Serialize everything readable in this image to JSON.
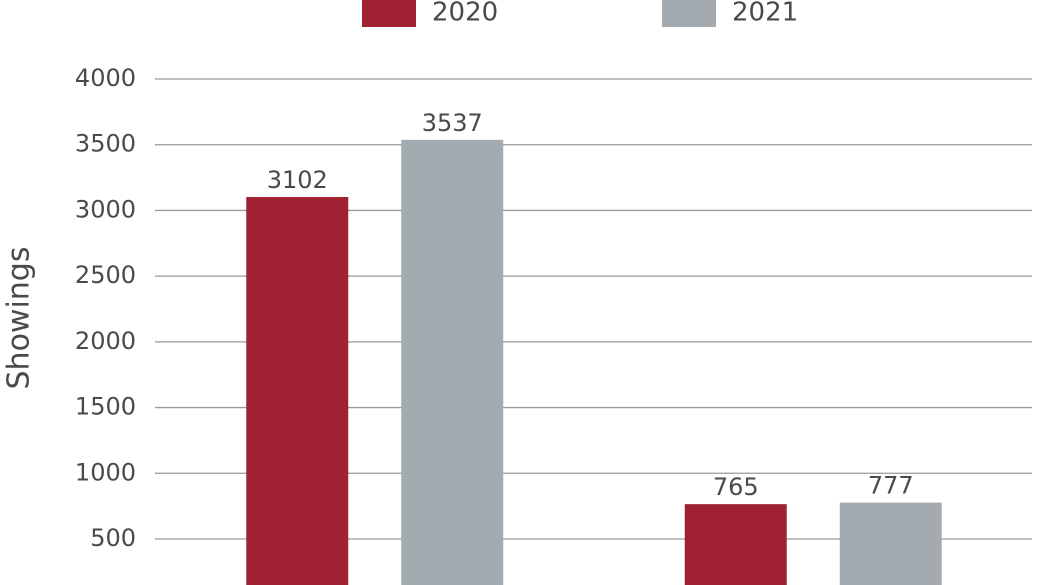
{
  "chart_data": {
    "type": "bar",
    "y_label": "Showings",
    "categories": [
      null,
      null
    ],
    "series": [
      {
        "name": "2020",
        "color": "#a02131",
        "values": [
          3102,
          765
        ]
      },
      {
        "name": "2021",
        "color": "#a3abb1",
        "values": [
          3537,
          777
        ]
      }
    ],
    "ylim": [
      150,
      4000
    ],
    "yticks": [
      500,
      1000,
      1500,
      2000,
      2500,
      3000,
      3500,
      4000
    ],
    "grid": true
  }
}
